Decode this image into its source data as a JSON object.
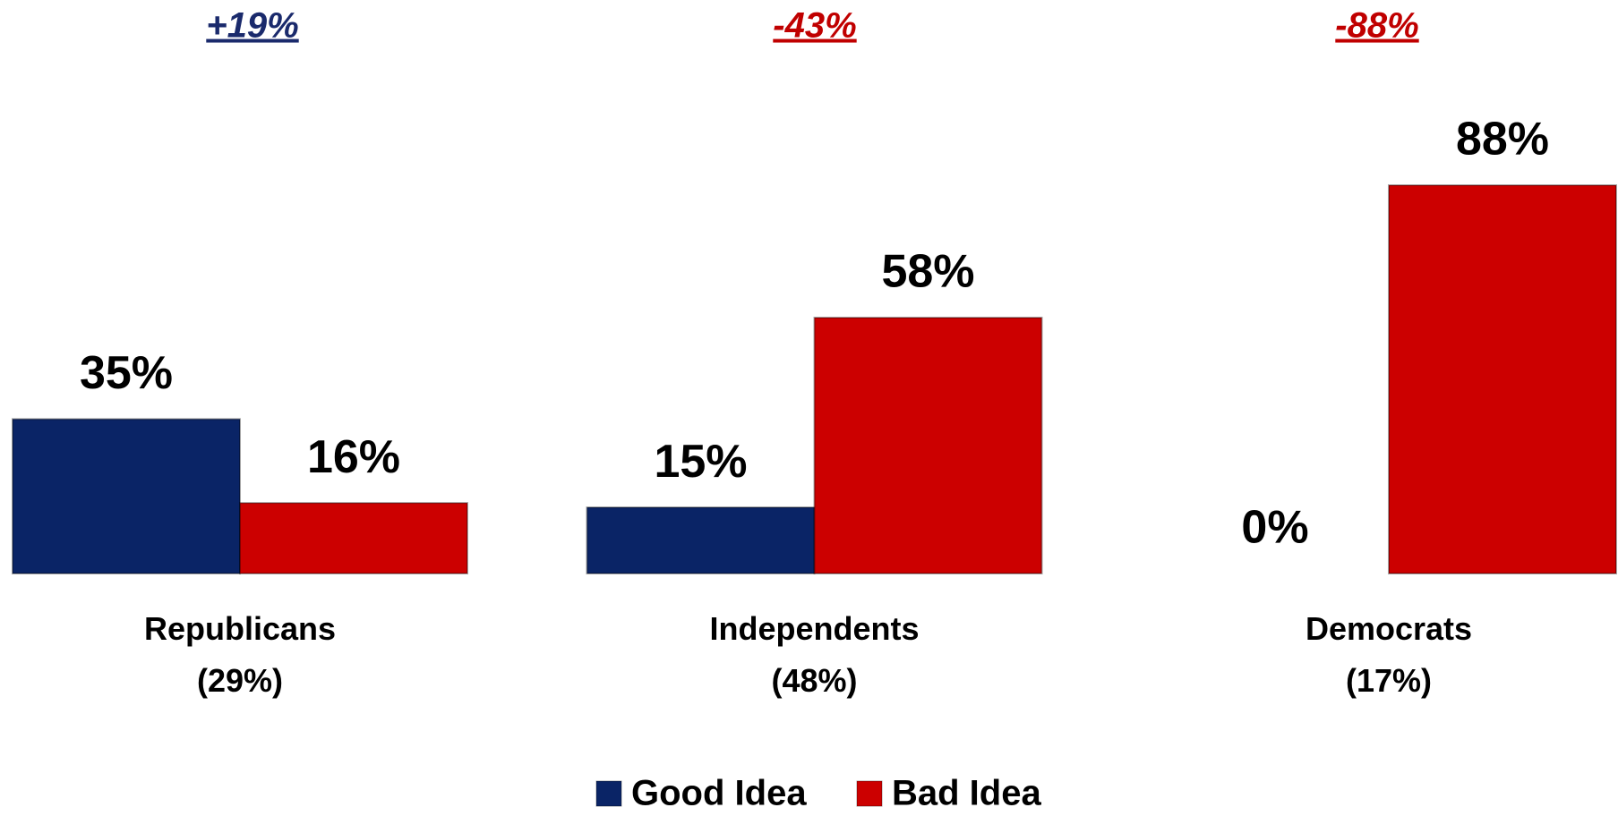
{
  "chart_data": {
    "type": "bar",
    "categories": [
      "Republicans\n(29%)",
      "Independents\n(48%)",
      "Democrats\n(17%)"
    ],
    "annotations": [
      {
        "text": "+19%",
        "color": "#1a2a6c"
      },
      {
        "text": "-43%",
        "color": "#c00000"
      },
      {
        "text": "-88%",
        "color": "#c00000"
      }
    ],
    "series": [
      {
        "name": "Good Idea",
        "color": "#0a2466",
        "values": [
          35,
          15,
          0
        ],
        "value_labels": [
          "35%",
          "15%",
          "0%"
        ]
      },
      {
        "name": "Bad Idea",
        "color": "#cc0000",
        "values": [
          16,
          58,
          88
        ],
        "value_labels": [
          "16%",
          "58%",
          "88%"
        ]
      }
    ],
    "legend": "bottom"
  }
}
